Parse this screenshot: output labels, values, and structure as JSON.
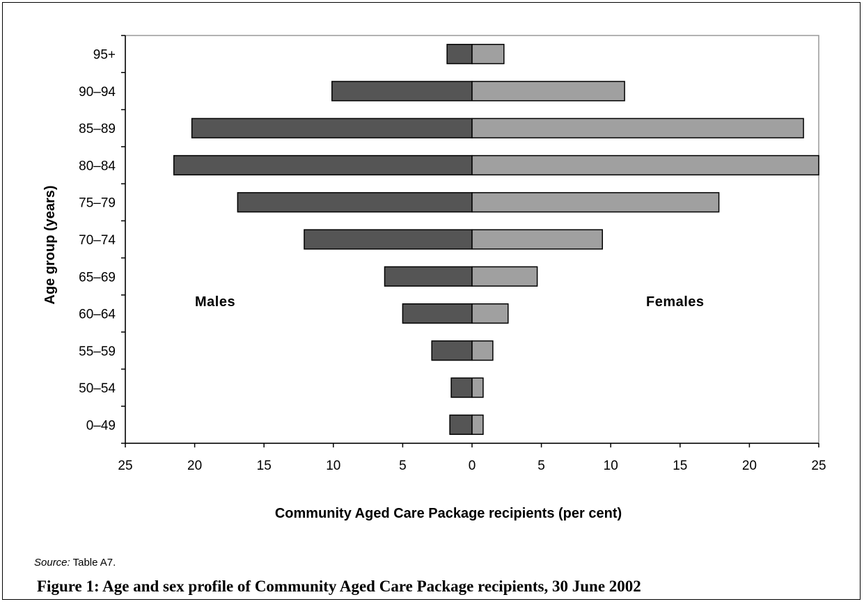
{
  "chart_data": {
    "type": "bar",
    "orientation": "horizontal",
    "subtype": "population-pyramid",
    "categories": [
      "0–49",
      "50–54",
      "55–59",
      "60–64",
      "65–69",
      "70–74",
      "75–79",
      "80–84",
      "85–89",
      "90–94",
      "95+"
    ],
    "series": [
      {
        "name": "Males",
        "values": [
          1.6,
          1.5,
          2.9,
          5.0,
          6.3,
          12.1,
          16.9,
          21.5,
          20.2,
          10.1,
          1.8
        ],
        "color": "#555555"
      },
      {
        "name": "Females",
        "values": [
          0.8,
          0.8,
          1.5,
          2.6,
          4.7,
          9.4,
          17.8,
          25.0,
          23.9,
          11.0,
          2.3
        ],
        "color": "#a0a0a0"
      }
    ],
    "xlim": [
      -25,
      25
    ],
    "x_ticks": [
      -25,
      -20,
      -15,
      -10,
      -5,
      0,
      5,
      10,
      15,
      20,
      25
    ],
    "x_tick_labels": [
      "25",
      "20",
      "15",
      "10",
      "5",
      "0",
      "5",
      "10",
      "15",
      "20",
      "25"
    ],
    "xlabel": "Community Aged Care Package recipients (per cent)",
    "ylabel": "Age group (years)",
    "annotations": {
      "left": "Males",
      "right": "Females"
    },
    "grid": false
  },
  "source": {
    "label": "Source:",
    "text": " Table A7."
  },
  "caption": "Figure 1: Age and sex profile of Community Aged Care Package recipients, 30 June 2002"
}
